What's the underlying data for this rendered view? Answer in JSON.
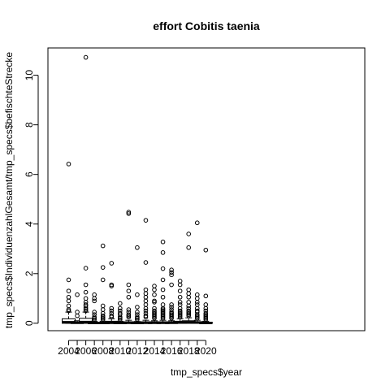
{
  "chart_data": {
    "type": "boxplot",
    "title": "effort Cobitis taenia",
    "xlabel": "tmp_specs$year",
    "ylabel": "tmp_specs$IndividuenzahlGesamt/tmp_specs$befischteStrecke",
    "ylim": [
      -0.3,
      11.1
    ],
    "y_ticks": [
      0,
      2,
      4,
      6,
      8,
      10
    ],
    "x_tick_labels": [
      "2004",
      "2006",
      "2008",
      "2010",
      "2012",
      "2014",
      "2016",
      "2018",
      "2020"
    ],
    "grid": false,
    "series": [
      {
        "year": "2004",
        "median": 0.04,
        "q1": 0.0,
        "q3": 0.18,
        "whisker_low": 0.0,
        "whisker_high": 0.45,
        "outliers": [
          6.42,
          1.75,
          1.3,
          1.05,
          0.9,
          0.7,
          0.55,
          0.5
        ]
      },
      {
        "year": "2005",
        "median": 0.02,
        "q1": 0.0,
        "q3": 0.05,
        "whisker_low": 0.0,
        "whisker_high": 0.1,
        "outliers": [
          1.15,
          0.45,
          0.3
        ]
      },
      {
        "year": "2006",
        "median": 0.05,
        "q1": 0.0,
        "q3": 0.2,
        "whisker_low": 0.0,
        "whisker_high": 0.45,
        "outliers": [
          10.72,
          2.22,
          1.55,
          1.25,
          1.0,
          0.85,
          0.75,
          0.7,
          0.62,
          0.56,
          0.5
        ]
      },
      {
        "year": "2007",
        "median": 0.01,
        "q1": 0.0,
        "q3": 0.04,
        "whisker_low": 0.0,
        "whisker_high": 0.08,
        "outliers": [
          1.15,
          1.0,
          0.9,
          0.45,
          0.35,
          0.25,
          0.2,
          0.15
        ]
      },
      {
        "year": "2008",
        "median": 0.01,
        "q1": 0.0,
        "q3": 0.04,
        "whisker_low": 0.0,
        "whisker_high": 0.08,
        "outliers": [
          3.12,
          2.25,
          1.75,
          0.7,
          0.55,
          0.4,
          0.3,
          0.25,
          0.2,
          0.15
        ]
      },
      {
        "year": "2009",
        "median": 0.02,
        "q1": 0.0,
        "q3": 0.08,
        "whisker_low": 0.0,
        "whisker_high": 0.18,
        "outliers": [
          2.42,
          1.55,
          1.5,
          0.6,
          0.5,
          0.4,
          0.3,
          0.25
        ]
      },
      {
        "year": "2010",
        "median": 0.01,
        "q1": 0.0,
        "q3": 0.04,
        "whisker_low": 0.0,
        "whisker_high": 0.08,
        "outliers": [
          0.8,
          0.6,
          0.5,
          0.4,
          0.35,
          0.25,
          0.2,
          0.15
        ]
      },
      {
        "year": "2011",
        "median": 0.02,
        "q1": 0.0,
        "q3": 0.06,
        "whisker_low": 0.0,
        "whisker_high": 0.12,
        "outliers": [
          4.48,
          4.42,
          1.55,
          1.3,
          1.05,
          0.55,
          0.45,
          0.35,
          0.3,
          0.25
        ]
      },
      {
        "year": "2012",
        "median": 0.01,
        "q1": 0.0,
        "q3": 0.03,
        "whisker_low": 0.0,
        "whisker_high": 0.07,
        "outliers": [
          3.05,
          1.15,
          0.65,
          0.45,
          0.35,
          0.25,
          0.2,
          0.15
        ]
      },
      {
        "year": "2013",
        "median": 0.02,
        "q1": 0.0,
        "q3": 0.06,
        "whisker_low": 0.0,
        "whisker_high": 0.12,
        "outliers": [
          4.15,
          2.45,
          1.35,
          1.2,
          1.05,
          0.9,
          0.75,
          0.6,
          0.5,
          0.4,
          0.3,
          0.25
        ]
      },
      {
        "year": "2014",
        "median": 0.02,
        "q1": 0.0,
        "q3": 0.05,
        "whisker_low": 0.0,
        "whisker_high": 0.1,
        "outliers": [
          1.5,
          1.35,
          1.15,
          0.9,
          0.85,
          0.6,
          0.5,
          0.45,
          0.4,
          0.35,
          0.3,
          0.25,
          0.2
        ]
      },
      {
        "year": "2015",
        "median": 0.02,
        "q1": 0.0,
        "q3": 0.06,
        "whisker_low": 0.0,
        "whisker_high": 0.12,
        "outliers": [
          3.28,
          2.85,
          2.2,
          1.75,
          1.35,
          1.05,
          0.75,
          0.6,
          0.55,
          0.5,
          0.45,
          0.4,
          0.35,
          0.3,
          0.25,
          0.2
        ]
      },
      {
        "year": "2016",
        "median": 0.02,
        "q1": 0.0,
        "q3": 0.05,
        "whisker_low": 0.0,
        "whisker_high": 0.1,
        "outliers": [
          2.15,
          2.05,
          1.95,
          1.55,
          0.75,
          0.65,
          0.55,
          0.45,
          0.4,
          0.35,
          0.3,
          0.25,
          0.2
        ]
      },
      {
        "year": "2017",
        "median": 0.03,
        "q1": 0.0,
        "q3": 0.08,
        "whisker_low": 0.0,
        "whisker_high": 0.18,
        "outliers": [
          1.7,
          1.55,
          1.3,
          1.05,
          0.85,
          0.75,
          0.6,
          0.5,
          0.45,
          0.4,
          0.35,
          0.3,
          0.25
        ]
      },
      {
        "year": "2018",
        "median": 0.04,
        "q1": 0.0,
        "q3": 0.1,
        "whisker_low": 0.0,
        "whisker_high": 0.22,
        "outliers": [
          3.6,
          3.05,
          1.35,
          1.2,
          1.05,
          0.85,
          0.7,
          0.6,
          0.5,
          0.45,
          0.4,
          0.35,
          0.3
        ]
      },
      {
        "year": "2019",
        "median": 0.03,
        "q1": 0.0,
        "q3": 0.06,
        "whisker_low": 0.0,
        "whisker_high": 0.12,
        "outliers": [
          4.05,
          1.15,
          1.0,
          0.85,
          0.75,
          0.6,
          0.5,
          0.45,
          0.35,
          0.3,
          0.25,
          0.2
        ]
      },
      {
        "year": "2020",
        "median": 0.01,
        "q1": 0.0,
        "q3": 0.04,
        "whisker_low": 0.0,
        "whisker_high": 0.08,
        "outliers": [
          2.95,
          1.1,
          0.75,
          0.6,
          0.5,
          0.4,
          0.35,
          0.3,
          0.25,
          0.2,
          0.15
        ]
      }
    ]
  }
}
